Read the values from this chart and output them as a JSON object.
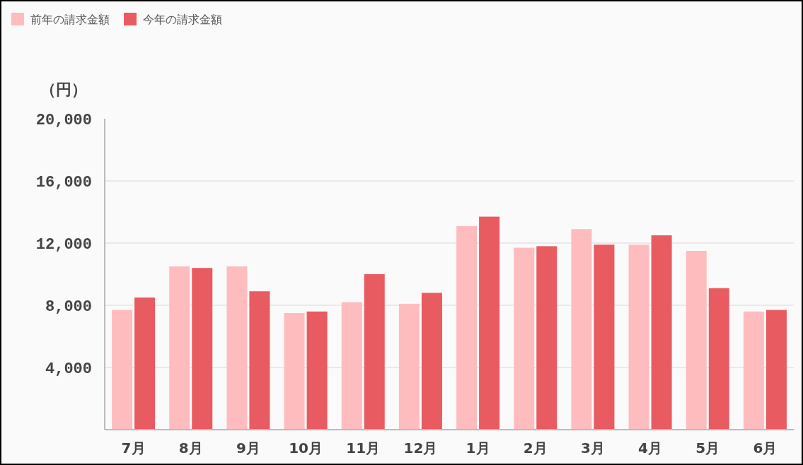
{
  "chart_data": {
    "type": "bar",
    "ylabel": "（円）",
    "categories": [
      "7月",
      "8月",
      "9月",
      "10月",
      "11月",
      "12月",
      "1月",
      "2月",
      "3月",
      "4月",
      "5月",
      "6月"
    ],
    "series": [
      {
        "name": "前年の請求金額",
        "color": "#ffbcbf",
        "values": [
          7700,
          10500,
          10500,
          7500,
          8200,
          8100,
          13100,
          11700,
          12900,
          11900,
          11500,
          7600
        ]
      },
      {
        "name": "今年の請求金額",
        "color": "#e85b61",
        "values": [
          8500,
          10400,
          8900,
          7600,
          10000,
          8800,
          13700,
          11800,
          11900,
          12500,
          9100,
          7700
        ]
      }
    ],
    "ylim": [
      0,
      20000
    ],
    "yticks": [
      {
        "value": 4000,
        "label": "4,000"
      },
      {
        "value": 8000,
        "label": "8,000"
      },
      {
        "value": 12000,
        "label": "12,000"
      },
      {
        "value": 16000,
        "label": "16,000"
      },
      {
        "value": 20000,
        "label": "20,000"
      }
    ],
    "grid": "y",
    "legend": "top left"
  }
}
